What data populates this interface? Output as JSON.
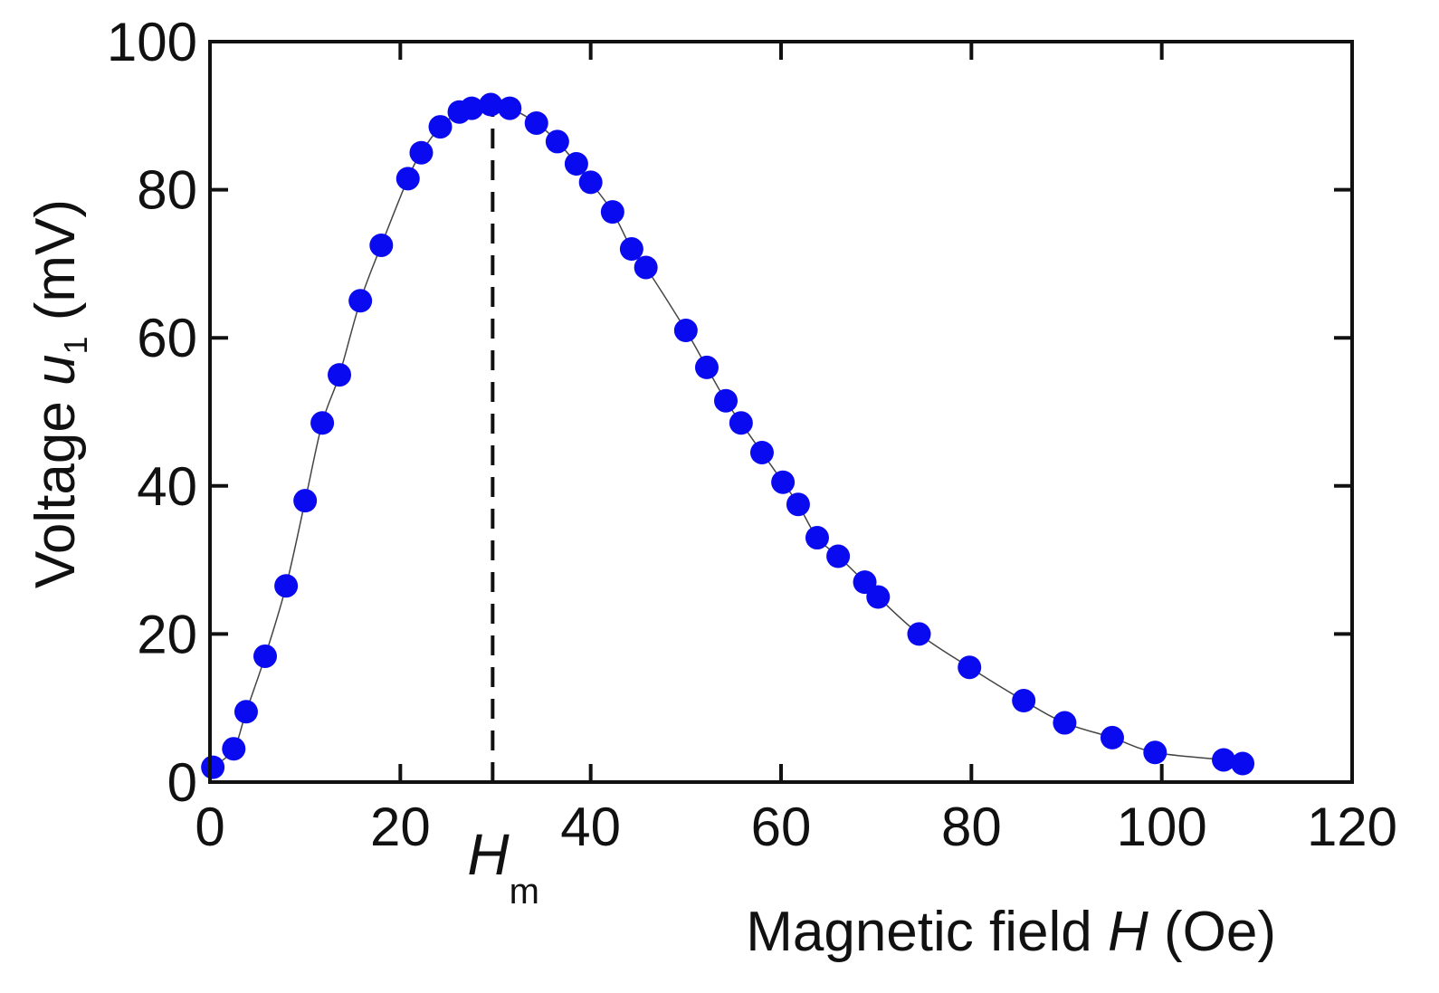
{
  "chart_data": {
    "type": "scatter",
    "title": "",
    "xlabel_text": "Magnetic field ",
    "xlabel_var": "H",
    "xlabel_unit": " (Oe)",
    "ylabel_text": "Voltage ",
    "ylabel_var": "u",
    "ylabel_sub": "1",
    "ylabel_unit": " (mV)",
    "xlim": [
      0,
      120
    ],
    "ylim": [
      0,
      100
    ],
    "xticks": [
      0,
      20,
      40,
      60,
      80,
      100,
      120
    ],
    "yticks": [
      0,
      20,
      40,
      60,
      80,
      100
    ],
    "marker_color": "#0a0af0",
    "line_color": "#444444",
    "annotation": {
      "label_main": "H",
      "label_sub": "m",
      "x": 29.7,
      "style": "dashed vertical line"
    },
    "series": [
      {
        "name": "u1",
        "x": [
          0.3,
          2.5,
          3.8,
          5.8,
          8,
          10,
          11.8,
          13.6,
          15.8,
          18,
          20.8,
          22.2,
          24.2,
          26.2,
          27.5,
          29.5,
          31.5,
          34.3,
          36.5,
          38.5,
          40,
          42.3,
          44.3,
          45.8,
          50,
          52.2,
          54.2,
          55.8,
          58,
          60.2,
          61.8,
          63.8,
          66,
          68.8,
          70.2,
          74.5,
          79.8,
          85.5,
          89.8,
          94.8,
          99.3,
          106.5,
          108.5
        ],
        "y": [
          2,
          4.5,
          9.5,
          17,
          26.5,
          38,
          48.5,
          55,
          65,
          72.5,
          81.5,
          85,
          88.5,
          90.5,
          91,
          91.5,
          91,
          89,
          86.5,
          83.5,
          81,
          77,
          72,
          69.5,
          61,
          56,
          51.5,
          48.5,
          44.5,
          40.5,
          37.5,
          33,
          30.5,
          27,
          25,
          20,
          15.5,
          11,
          8,
          6,
          4,
          3,
          2.5
        ]
      }
    ]
  }
}
